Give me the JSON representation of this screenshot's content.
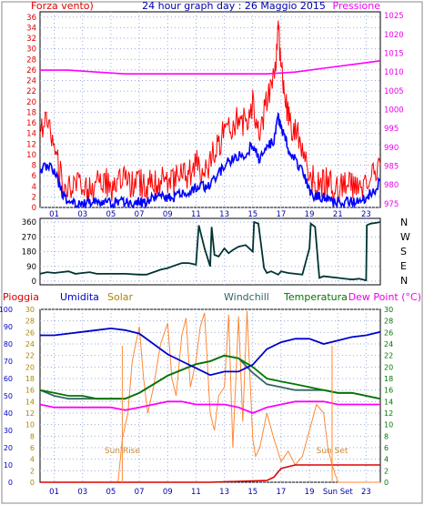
{
  "header": {
    "left_label": "Forza vento)",
    "title": "24 hour graph day : 26 Maggio 2015",
    "right_label": "Pressione"
  },
  "colors": {
    "gust": "#ff0000",
    "wind": "#0000ff",
    "pressure": "#ff00ff",
    "direction": "#003333",
    "rain": "#dd0000",
    "humidity": "#0000cc",
    "solar": "#ff8833",
    "windchill": "#336666",
    "temperature": "#007700",
    "dewpoint": "#ff00ff",
    "grid": "#99aadd",
    "axis_blue": "#0000aa"
  },
  "chart_data": [
    {
      "type": "line",
      "panel": "wind",
      "title": "24 hour graph day : 26 Maggio 2015",
      "ylabel_left": "Forza vento)",
      "ylabel_right": "Pressione",
      "x_ticks": [
        "01",
        "03",
        "05",
        "07",
        "09",
        "11",
        "13",
        "15",
        "17",
        "19",
        "21",
        "23"
      ],
      "y_left_ticks": [
        0,
        2,
        4,
        6,
        8,
        10,
        12,
        14,
        16,
        18,
        20,
        22,
        24,
        26,
        28,
        30,
        32,
        34,
        36
      ],
      "y_left_range": [
        0,
        37
      ],
      "y_right_ticks": [
        975,
        980,
        985,
        990,
        995,
        1000,
        1005,
        1010,
        1015,
        1020,
        1025
      ],
      "y_right_range": [
        974,
        1026
      ],
      "series": [
        {
          "key": "gust",
          "axis": "left",
          "x": [
            0,
            0.5,
            1,
            1.5,
            2,
            2.5,
            3,
            3.5,
            4,
            4.5,
            5,
            5.5,
            6,
            6.5,
            7,
            7.5,
            8,
            8.5,
            9,
            9.5,
            10,
            10.5,
            11,
            11.5,
            12,
            12.5,
            13,
            13.5,
            14,
            14.5,
            15,
            15.5,
            16,
            16.5,
            16.8,
            17,
            17.3,
            17.6,
            18,
            18.5,
            19,
            19.5,
            20,
            20.5,
            21,
            21.5,
            22,
            22.5,
            23,
            23.5,
            24
          ],
          "values": [
            14,
            16,
            13,
            5,
            3,
            4,
            4,
            3,
            5,
            5,
            4,
            4,
            5,
            4,
            5,
            4,
            5,
            5,
            4,
            5,
            6,
            6,
            8,
            7,
            8,
            12,
            14,
            15,
            17,
            16,
            20,
            14,
            20,
            24,
            34,
            27,
            20,
            16,
            14,
            12,
            6,
            4,
            5,
            4,
            3,
            4,
            4,
            3,
            5,
            6,
            8
          ]
        },
        {
          "key": "wind",
          "axis": "left",
          "x": [
            0,
            0.5,
            1,
            1.5,
            2,
            2.5,
            3,
            3.5,
            4,
            4.5,
            5,
            5.5,
            6,
            6.5,
            7,
            7.5,
            8,
            8.5,
            9,
            9.5,
            10,
            10.5,
            11,
            11.5,
            12,
            12.5,
            13,
            13.5,
            14,
            14.5,
            15,
            15.5,
            16,
            16.5,
            16.8,
            17,
            17.3,
            17.6,
            18,
            18.5,
            19,
            19.5,
            20,
            20.5,
            21,
            21.5,
            22,
            22.5,
            23,
            23.5,
            24
          ],
          "values": [
            7,
            8,
            7,
            3,
            1,
            1,
            1,
            1,
            1,
            1,
            1,
            1,
            1,
            1,
            1,
            1,
            2,
            2,
            2,
            2,
            3,
            3,
            4,
            4,
            4,
            6,
            8,
            9,
            10,
            10,
            12,
            9,
            11,
            13,
            17,
            15,
            13,
            10,
            9,
            7,
            3,
            2,
            2,
            1,
            1,
            1,
            1,
            1,
            2,
            3,
            5
          ]
        },
        {
          "key": "pressure",
          "axis": "right",
          "x": [
            0,
            2,
            4,
            6,
            8,
            10,
            12,
            14,
            16,
            18,
            20,
            22,
            24
          ],
          "values": [
            1010.5,
            1010.5,
            1010.0,
            1009.5,
            1009.5,
            1009.5,
            1009.5,
            1009.5,
            1009.5,
            1010.0,
            1011.0,
            1012.0,
            1013.0
          ]
        }
      ]
    },
    {
      "type": "line",
      "panel": "direction",
      "y_ticks": [
        0,
        90,
        180,
        270,
        360
      ],
      "y_range": [
        0,
        360
      ],
      "right_labels": [
        "N",
        "W",
        "S",
        "E",
        "N"
      ],
      "series": [
        {
          "key": "direction",
          "x": [
            0,
            0.5,
            1,
            1.5,
            2,
            2.5,
            3,
            3.5,
            4,
            5,
            6,
            7,
            7.5,
            8,
            8.5,
            9,
            9.5,
            10,
            10.5,
            11,
            11.2,
            11.6,
            12,
            12.1,
            12.3,
            12.6,
            13,
            13.3,
            13.6,
            14,
            14.5,
            15,
            15.1,
            15.4,
            15.8,
            16,
            16.3,
            16.8,
            17,
            17.5,
            18,
            18.5,
            19,
            19.1,
            19.4,
            19.7,
            20,
            21,
            22,
            22.5,
            23,
            23.05,
            23.3,
            23.7,
            24
          ],
          "values": [
            45,
            55,
            50,
            55,
            60,
            45,
            50,
            55,
            45,
            45,
            45,
            40,
            40,
            55,
            70,
            80,
            95,
            110,
            110,
            100,
            340,
            200,
            90,
            330,
            160,
            150,
            200,
            170,
            190,
            210,
            220,
            180,
            360,
            350,
            80,
            50,
            60,
            40,
            60,
            50,
            45,
            40,
            200,
            350,
            330,
            20,
            30,
            20,
            10,
            15,
            5,
            340,
            350,
            355,
            360
          ]
        }
      ]
    },
    {
      "type": "line",
      "panel": "atmosphere",
      "labels": {
        "rain": "Pioggia",
        "humidity": "Umidita",
        "solar": "Solar",
        "windchill": "Windchill",
        "temperature": "Temperatura",
        "dewpoint": "Dew Point (°C)"
      },
      "x_ticks": [
        "01",
        "03",
        "05",
        "07",
        "09",
        "11",
        "13",
        "15",
        "17",
        "19",
        "Sun Set",
        "23"
      ],
      "y_left_ticks": [
        0,
        10,
        20,
        30,
        40,
        50,
        60,
        70,
        80,
        90,
        100
      ],
      "y_left_range": [
        0,
        100
      ],
      "y_solar_ticks": [
        0,
        2,
        4,
        6,
        8,
        10,
        12,
        14,
        16,
        18,
        20,
        22,
        24,
        26,
        28,
        30
      ],
      "y_right_ticks": [
        0,
        2,
        4,
        6,
        8,
        10,
        12,
        14,
        16,
        18,
        20,
        22,
        24,
        26,
        28,
        30
      ],
      "y_right_range": [
        0,
        30
      ],
      "annotations": [
        {
          "text": "Sun Rise",
          "x": 5.8
        },
        {
          "text": "Sun Set",
          "x": 20.6
        }
      ],
      "series": [
        {
          "key": "humidity",
          "axis": "left",
          "x": [
            0,
            1,
            2,
            3,
            4,
            5,
            6,
            7,
            8,
            9,
            10,
            11,
            12,
            13,
            14,
            15,
            16,
            17,
            18,
            19,
            20,
            21,
            22,
            23,
            24
          ],
          "values": [
            85,
            85,
            86,
            87,
            88,
            89,
            88,
            86,
            80,
            74,
            70,
            66,
            62,
            64,
            64,
            68,
            77,
            81,
            83,
            83,
            80,
            82,
            84,
            85,
            87
          ]
        },
        {
          "key": "temperature",
          "axis": "right",
          "x": [
            0,
            1,
            2,
            3,
            4,
            5,
            6,
            7,
            8,
            9,
            10,
            11,
            12,
            13,
            14,
            15,
            16,
            17,
            18,
            19,
            20,
            21,
            22,
            23,
            24
          ],
          "values": [
            16,
            15.5,
            15,
            15,
            14.5,
            14.5,
            14.5,
            15.5,
            17,
            18.5,
            19.5,
            20.5,
            21,
            22,
            21.5,
            20,
            18,
            17.5,
            17,
            16.5,
            16,
            15.5,
            15.5,
            15,
            14.5
          ]
        },
        {
          "key": "windchill",
          "axis": "right",
          "x": [
            0,
            1,
            2,
            3,
            4,
            5,
            6,
            7,
            8,
            9,
            10,
            11,
            12,
            13,
            14,
            15,
            16,
            17,
            18,
            19,
            20,
            21,
            22,
            23,
            24
          ],
          "values": [
            16,
            15,
            14.5,
            14.5,
            14.5,
            14.5,
            14.5,
            15.5,
            17,
            18.5,
            19.5,
            20.5,
            21,
            22,
            21.5,
            19,
            17,
            16.5,
            16,
            16,
            16,
            15.5,
            15.5,
            15,
            14.5
          ]
        },
        {
          "key": "dewpoint",
          "axis": "right",
          "x": [
            0,
            1,
            2,
            3,
            4,
            5,
            6,
            7,
            8,
            9,
            10,
            11,
            12,
            13,
            14,
            15,
            16,
            17,
            18,
            19,
            20,
            21,
            22,
            23,
            24
          ],
          "values": [
            13.5,
            13,
            13,
            13,
            13,
            13,
            12.5,
            13,
            13.5,
            14,
            14,
            13.5,
            13.5,
            13.5,
            13,
            12,
            13,
            13.5,
            14,
            14,
            14,
            13.5,
            13.5,
            13.5,
            13.5
          ]
        },
        {
          "key": "solar",
          "axis": "left",
          "x": [
            0,
            5.5,
            5.8,
            6.2,
            6.5,
            7,
            7.3,
            7.6,
            8,
            8.5,
            9,
            9.3,
            9.6,
            10,
            10.3,
            10.6,
            11,
            11.3,
            11.6,
            12,
            12.3,
            12.6,
            13,
            13.3,
            13.6,
            14,
            14.3,
            14.6,
            15,
            15.2,
            15.5,
            16,
            16.5,
            17,
            17.5,
            18,
            18.5,
            19,
            19.5,
            20,
            20.3,
            20.6,
            21,
            24
          ],
          "values": [
            0,
            0,
            25,
            40,
            70,
            90,
            60,
            40,
            55,
            80,
            92,
            60,
            50,
            85,
            95,
            55,
            70,
            90,
            98,
            40,
            30,
            50,
            55,
            97,
            20,
            96,
            35,
            99,
            25,
            15,
            20,
            40,
            25,
            12,
            18,
            10,
            15,
            30,
            45,
            40,
            20,
            10,
            0,
            0
          ]
        },
        {
          "key": "rain",
          "axis": "left",
          "x": [
            0,
            6,
            12,
            14,
            16,
            16.5,
            17,
            18,
            20,
            22,
            24
          ],
          "values": [
            0,
            0,
            0,
            0.5,
            1,
            3,
            8,
            10,
            10,
            10,
            10
          ]
        }
      ]
    }
  ]
}
